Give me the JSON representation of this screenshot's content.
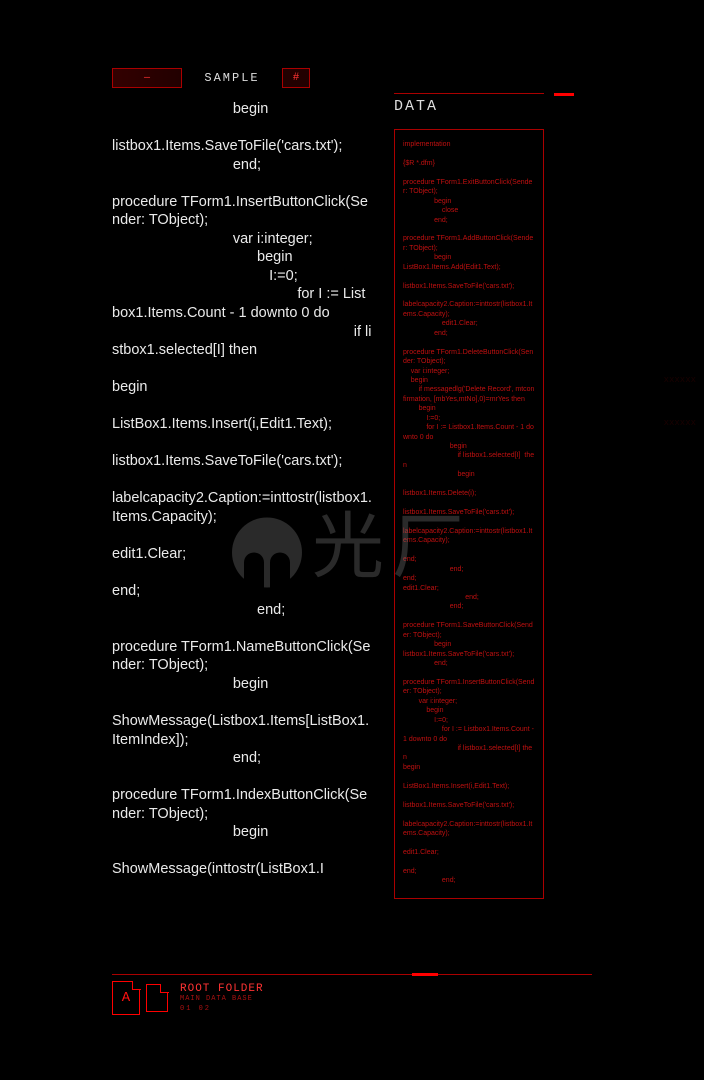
{
  "colors": {
    "bg": "#000000",
    "text_main": "#eaeaea",
    "red_bright": "#ff0000",
    "red_dim": "#a00",
    "red_text": "#c01010"
  },
  "topbar": {
    "left": "—",
    "mid": "SAMPLE",
    "right": "#"
  },
  "main_code": "                              begin\n\nlistbox1.Items.SaveToFile('cars.txt');\n                              end;\n\nprocedure TForm1.InsertButtonClick(Sender: TObject);\n                              var i:integer;\n                                    begin\n                                       I:=0;\n                                              for I := Listbox1.Items.Count - 1 downto 0 do\n                                                            if listbox1.selected[I] then\n\nbegin\n\nListBox1.Items.Insert(i,Edit1.Text);\n\nlistbox1.Items.SaveToFile('cars.txt');\n\nlabelcapacity2.Caption:=inttostr(listbox1.Items.Capacity);\n\nedit1.Clear;\n\nend;\n                                    end;\n\nprocedure TForm1.NameButtonClick(Sender: TObject);\n                              begin\n\nShowMessage(Listbox1.Items[ListBox1.ItemIndex]);\n                              end;\n\nprocedure TForm1.IndexButtonClick(Sender: TObject);\n                              begin\n\nShowMessage(inttostr(ListBox1.I",
  "right_panel": {
    "title": "DATA",
    "mini_code": "implementation\n\n{$R *.dfm}\n\nprocedure TForm1.ExitButtonClick(Sender: TObject);\n                begin\n                    close\n                end;\n\nprocedure TForm1.AddButtonClick(Sender: TObject);\n                begin\nListBox1.Items.Add(Edit1.Text);\n\nlistbox1.Items.SaveToFile('cars.txt');\n\nlabelcapacity2.Caption:=inttostr(listbox1.Items.Capacity);\n                    edit1.Clear;\n                end;\n\nprocedure TForm1.DeleteButtonClick(Sender: TObject);\n    var i:integer;\n    begin\n        if messagedlg('Delete Record', mtconfirmation, [mbYes,mtNo],0)=mrYes then\n        begin\n            I:=0;\n            for I := Listbox1.Items.Count - 1 downto 0 do\n                        begin\n                            if listbox1.selected[I]  then\n                            begin\n\nlistbox1.Items.Delete(i);\n\nlistbox1.Items.SaveToFile('cars.txt');\n\nlabelcapacity2.Caption:=inttostr(listbox1.Items.Capacity);\n\nend;\n                        end;\nend;\nedit1.Clear;\n                                end;\n                        end;\n\nprocedure TForm1.SaveButtonClick(Sender: TObject);\n                begin\nlistbox1.Items.SaveToFile('cars.txt');\n                end;\n\nprocedure TForm1.InsertButtonClick(Sender: TObject);\n        var i:integer;\n            begin\n                I:=0;\n                    for I := Listbox1.Items.Count - 1 downto 0 do\n                            if listbox1.selected[I] then\nbegin\n\nListBox1.Items.Insert(i,Edit1.Text);\n\nlistbox1.Items.SaveToFile('cars.txt');\n\nlabelcapacity2.Caption:=inttostr(listbox1.Items.Capacity);\n\nedit1.Clear;\n\nend;\n                    end;"
  },
  "scrollbar": {
    "thumb_top_pct": 31,
    "thumb_height_pct": 22
  },
  "footer": {
    "icon_letter": "A",
    "title": "ROOT FOLDER",
    "sub": "MAIN DATA BASE",
    "nums": "01   02"
  },
  "watermark": "光厂"
}
